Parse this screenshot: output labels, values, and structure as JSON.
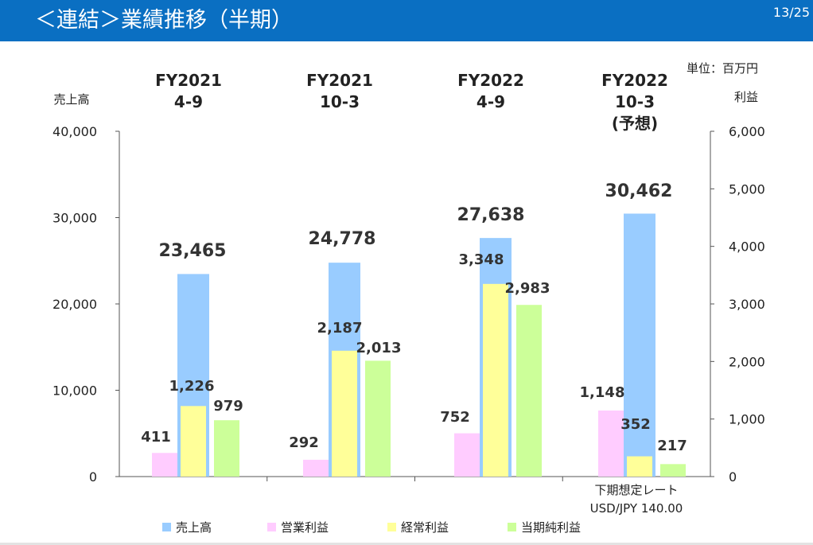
{
  "header": {
    "title": "＜連結＞業績推移（半期）",
    "page": "13/25"
  },
  "colors": {
    "header_bg": "#0a6fc2",
    "sales": "#99ccff",
    "operating_profit": "#ffccff",
    "ordinary_profit": "#ffff99",
    "net_profit": "#ccff99"
  },
  "chart_data": {
    "type": "bar",
    "unit_label": "単位：百万円",
    "left_axis_label": "売上高",
    "right_axis_label": "利益",
    "left_ticks": [
      "40,000",
      "30,000",
      "20,000",
      "10,000",
      "0"
    ],
    "right_ticks": [
      "6,000",
      "5,000",
      "4,000",
      "3,000",
      "2,000",
      "1,000",
      "0"
    ],
    "left_ylim": [
      0,
      40000
    ],
    "right_ylim": [
      0,
      6000
    ],
    "categories": [
      [
        "FY2021",
        "4-9"
      ],
      [
        "FY2021",
        "10-3"
      ],
      [
        "FY2022",
        "4-9"
      ],
      [
        "FY2022",
        "10-3",
        "(予想)"
      ]
    ],
    "series": [
      {
        "name": "売上高",
        "axis": "left",
        "values": [
          23465,
          24778,
          27638,
          30462
        ],
        "labels": [
          "23,465",
          "24,778",
          "27,638",
          "30,462"
        ]
      },
      {
        "name": "営業利益",
        "axis": "right",
        "values": [
          411,
          292,
          752,
          1148
        ],
        "labels": [
          "411",
          "292",
          "752",
          "1,148"
        ]
      },
      {
        "name": "経常利益",
        "axis": "right",
        "values": [
          1226,
          2187,
          3348,
          352
        ],
        "labels": [
          "1,226",
          "2,187",
          "3,348",
          "352"
        ]
      },
      {
        "name": "当期純利益",
        "axis": "right",
        "values": [
          979,
          2013,
          2983,
          217
        ],
        "labels": [
          "979",
          "2,013",
          "2,983",
          "217"
        ]
      }
    ],
    "annotation": [
      "下期想定レート",
      "USD/JPY 140.00"
    ],
    "legend_position": "bottom",
    "grid": false
  }
}
